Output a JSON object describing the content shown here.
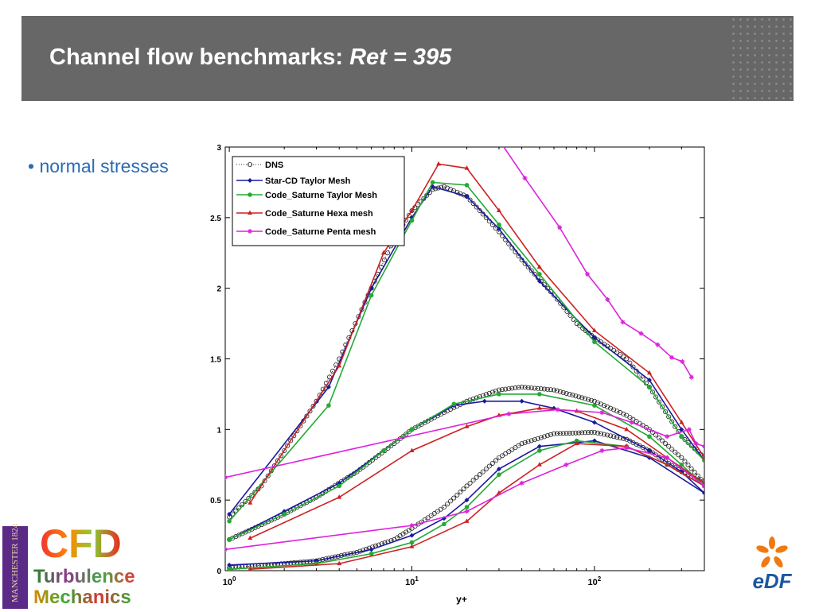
{
  "header": {
    "title_main": "Channel flow benchmarks: ",
    "title_italic": "Ret = 395"
  },
  "bullet": "• normal stresses",
  "logos": {
    "manchester": "MANCHESTER 1824",
    "cfd": "CFD",
    "turbulence": "Turbulence",
    "mechanics": "Mechanics",
    "edf": "eDF"
  },
  "chart_data": {
    "type": "line",
    "xlabel": "y+",
    "ylabel": "",
    "xscale": "log",
    "xlim": [
      0.95,
      400
    ],
    "ylim": [
      0,
      3
    ],
    "xticks": [
      {
        "v": 1,
        "label": "10",
        "exp": "0"
      },
      {
        "v": 10,
        "label": "10",
        "exp": "1"
      },
      {
        "v": 100,
        "label": "10",
        "exp": "2"
      }
    ],
    "yticks": [
      0,
      0.5,
      1,
      1.5,
      2,
      2.5,
      3
    ],
    "legend_position": "top-left",
    "series": [
      {
        "name": "DNS",
        "color": "#000000",
        "style": "dotted-circles",
        "curves": [
          [
            [
              1,
              0.38
            ],
            [
              1.5,
              0.6
            ],
            [
              2,
              0.85
            ],
            [
              3,
              1.2
            ],
            [
              4,
              1.5
            ],
            [
              6,
              2.0
            ],
            [
              8,
              2.35
            ],
            [
              10,
              2.55
            ],
            [
              13,
              2.7
            ],
            [
              15,
              2.72
            ],
            [
              20,
              2.65
            ],
            [
              30,
              2.4
            ],
            [
              40,
              2.2
            ],
            [
              60,
              1.95
            ],
            [
              80,
              1.75
            ],
            [
              100,
              1.65
            ],
            [
              150,
              1.5
            ],
            [
              200,
              1.3
            ],
            [
              300,
              0.95
            ],
            [
              400,
              0.8
            ]
          ],
          [
            [
              1,
              0.22
            ],
            [
              2,
              0.4
            ],
            [
              3,
              0.52
            ],
            [
              5,
              0.7
            ],
            [
              8,
              0.9
            ],
            [
              10,
              1.0
            ],
            [
              15,
              1.12
            ],
            [
              20,
              1.2
            ],
            [
              30,
              1.28
            ],
            [
              40,
              1.3
            ],
            [
              60,
              1.28
            ],
            [
              100,
              1.2
            ],
            [
              150,
              1.1
            ],
            [
              200,
              1.0
            ],
            [
              300,
              0.8
            ],
            [
              400,
              0.62
            ]
          ],
          [
            [
              1,
              0.02
            ],
            [
              2,
              0.05
            ],
            [
              3,
              0.07
            ],
            [
              5,
              0.13
            ],
            [
              8,
              0.22
            ],
            [
              10,
              0.3
            ],
            [
              15,
              0.45
            ],
            [
              20,
              0.6
            ],
            [
              30,
              0.8
            ],
            [
              40,
              0.9
            ],
            [
              60,
              0.97
            ],
            [
              100,
              0.98
            ],
            [
              150,
              0.93
            ],
            [
              200,
              0.85
            ],
            [
              300,
              0.7
            ],
            [
              400,
              0.62
            ]
          ]
        ]
      },
      {
        "name": "Star-CD Taylor Mesh",
        "color": "#1a1aa0",
        "style": "diamond",
        "curves": [
          [
            [
              1,
              0.4
            ],
            [
              3.5,
              1.3
            ],
            [
              6,
              2.0
            ],
            [
              10,
              2.5
            ],
            [
              13,
              2.72
            ],
            [
              20,
              2.65
            ],
            [
              30,
              2.42
            ],
            [
              50,
              2.05
            ],
            [
              100,
              1.65
            ],
            [
              200,
              1.35
            ],
            [
              300,
              1.0
            ],
            [
              400,
              0.78
            ]
          ],
          [
            [
              1,
              0.22
            ],
            [
              2,
              0.42
            ],
            [
              4,
              0.62
            ],
            [
              7,
              0.85
            ],
            [
              10,
              1.0
            ],
            [
              17,
              1.17
            ],
            [
              25,
              1.2
            ],
            [
              40,
              1.2
            ],
            [
              60,
              1.15
            ],
            [
              100,
              1.05
            ],
            [
              200,
              0.85
            ],
            [
              300,
              0.7
            ],
            [
              400,
              0.55
            ]
          ],
          [
            [
              1,
              0.04
            ],
            [
              3,
              0.07
            ],
            [
              6,
              0.15
            ],
            [
              10,
              0.25
            ],
            [
              15,
              0.37
            ],
            [
              20,
              0.5
            ],
            [
              30,
              0.72
            ],
            [
              50,
              0.88
            ],
            [
              100,
              0.92
            ],
            [
              200,
              0.8
            ],
            [
              400,
              0.55
            ]
          ]
        ]
      },
      {
        "name": "Code_Saturne Taylor Mesh",
        "color": "#22aa33",
        "style": "circle",
        "curves": [
          [
            [
              1,
              0.35
            ],
            [
              3.5,
              1.17
            ],
            [
              6,
              1.95
            ],
            [
              10,
              2.48
            ],
            [
              13,
              2.75
            ],
            [
              20,
              2.73
            ],
            [
              30,
              2.45
            ],
            [
              50,
              2.1
            ],
            [
              100,
              1.62
            ],
            [
              200,
              1.3
            ],
            [
              300,
              0.95
            ],
            [
              400,
              0.78
            ]
          ],
          [
            [
              1,
              0.22
            ],
            [
              2,
              0.4
            ],
            [
              4,
              0.6
            ],
            [
              7,
              0.85
            ],
            [
              10,
              1.0
            ],
            [
              17,
              1.18
            ],
            [
              30,
              1.25
            ],
            [
              50,
              1.25
            ],
            [
              100,
              1.17
            ],
            [
              200,
              0.95
            ],
            [
              300,
              0.75
            ],
            [
              400,
              0.6
            ]
          ],
          [
            [
              1,
              0.01
            ],
            [
              3,
              0.05
            ],
            [
              6,
              0.12
            ],
            [
              10,
              0.2
            ],
            [
              15,
              0.33
            ],
            [
              20,
              0.45
            ],
            [
              30,
              0.68
            ],
            [
              50,
              0.85
            ],
            [
              80,
              0.92
            ],
            [
              150,
              0.88
            ],
            [
              250,
              0.75
            ],
            [
              400,
              0.6
            ]
          ]
        ]
      },
      {
        "name": "Code_Saturne Hexa mesh",
        "color": "#cc2222",
        "style": "triangle",
        "curves": [
          [
            [
              1.3,
              0.48
            ],
            [
              4,
              1.45
            ],
            [
              7,
              2.25
            ],
            [
              10,
              2.55
            ],
            [
              14,
              2.88
            ],
            [
              20,
              2.85
            ],
            [
              30,
              2.55
            ],
            [
              50,
              2.15
            ],
            [
              100,
              1.7
            ],
            [
              200,
              1.4
            ],
            [
              300,
              1.05
            ],
            [
              400,
              0.8
            ]
          ],
          [
            [
              1.3,
              0.23
            ],
            [
              4,
              0.52
            ],
            [
              10,
              0.85
            ],
            [
              20,
              1.02
            ],
            [
              30,
              1.1
            ],
            [
              50,
              1.15
            ],
            [
              80,
              1.13
            ],
            [
              150,
              1.0
            ],
            [
              250,
              0.8
            ],
            [
              400,
              0.62
            ]
          ],
          [
            [
              1.3,
              0.01
            ],
            [
              4,
              0.05
            ],
            [
              10,
              0.17
            ],
            [
              20,
              0.35
            ],
            [
              30,
              0.55
            ],
            [
              50,
              0.75
            ],
            [
              80,
              0.9
            ],
            [
              150,
              0.88
            ],
            [
              250,
              0.75
            ],
            [
              400,
              0.6
            ]
          ]
        ]
      },
      {
        "name": "Code_Saturne Penta mesh",
        "color": "#dd22dd",
        "style": "star",
        "curves": [
          [
            [
              30,
              3.05
            ],
            [
              41.6,
              2.78
            ],
            [
              64.5,
              2.43
            ],
            [
              91.5,
              2.1
            ],
            [
              118,
              1.92
            ],
            [
              143,
              1.76
            ],
            [
              180,
              1.68
            ],
            [
              222,
              1.6
            ],
            [
              265,
              1.51
            ],
            [
              303,
              1.48
            ],
            [
              340,
              1.37
            ]
          ],
          [
            [
              0.95,
              0.66
            ],
            [
              34,
              1.11
            ],
            [
              63,
              1.14
            ],
            [
              110,
              1.12
            ],
            [
              160,
              1.05
            ],
            [
              250,
              0.95
            ],
            [
              330,
              1.0
            ],
            [
              360,
              0.9
            ],
            [
              400,
              0.88
            ]
          ],
          [
            [
              0.95,
              0.15
            ],
            [
              10,
              0.32
            ],
            [
              20,
              0.42
            ],
            [
              40,
              0.62
            ],
            [
              70,
              0.75
            ],
            [
              110,
              0.85
            ],
            [
              150,
              0.87
            ],
            [
              250,
              0.8
            ],
            [
              400,
              0.6
            ]
          ]
        ]
      }
    ]
  }
}
